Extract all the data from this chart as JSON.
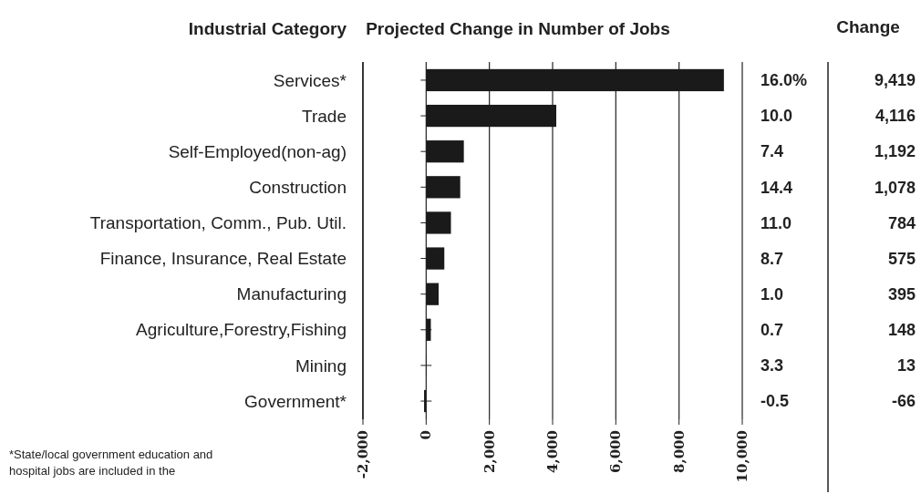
{
  "chart_data": {
    "type": "bar",
    "orientation": "horizontal",
    "title": "Projected Change in Number of Jobs",
    "ylabel": "Industrial Category",
    "categories": [
      "Services*",
      "Trade",
      "Self-Employed(non-ag)",
      "Construction",
      "Transportation, Comm., Pub. Util.",
      "Finance, Insurance, Real Estate",
      "Manufacturing",
      "Agriculture,Forestry,Fishing",
      "Mining",
      "Government*"
    ],
    "values": [
      9419,
      4116,
      1192,
      1078,
      784,
      575,
      395,
      148,
      13,
      -66
    ],
    "value_labels": [
      "9,419",
      "4,116",
      "1,192",
      "1,078",
      "784",
      "575",
      "395",
      "148",
      "13",
      "-66"
    ],
    "color": "#1a1a1a",
    "xlim": [
      -2000,
      10000
    ],
    "xticks": [
      {
        "value": -2000,
        "label": "-2,000"
      },
      0,
      {
        "value": 2000,
        "label": "2,000"
      },
      {
        "value": 4000,
        "label": "4,000"
      },
      {
        "value": 6000,
        "label": "6,000"
      },
      {
        "value": 8000,
        "label": "8,000"
      },
      {
        "value": 10000,
        "label": "10,000"
      }
    ],
    "grid": "x",
    "annotations": [
      "Change",
      "*State/local government education and hospital jobs are included in the",
      "16.0%",
      "10.0",
      "7.4",
      "14.4",
      "11.0",
      "8.7",
      "1.0",
      "0.7",
      "3.3",
      "-0.5"
    ]
  }
}
